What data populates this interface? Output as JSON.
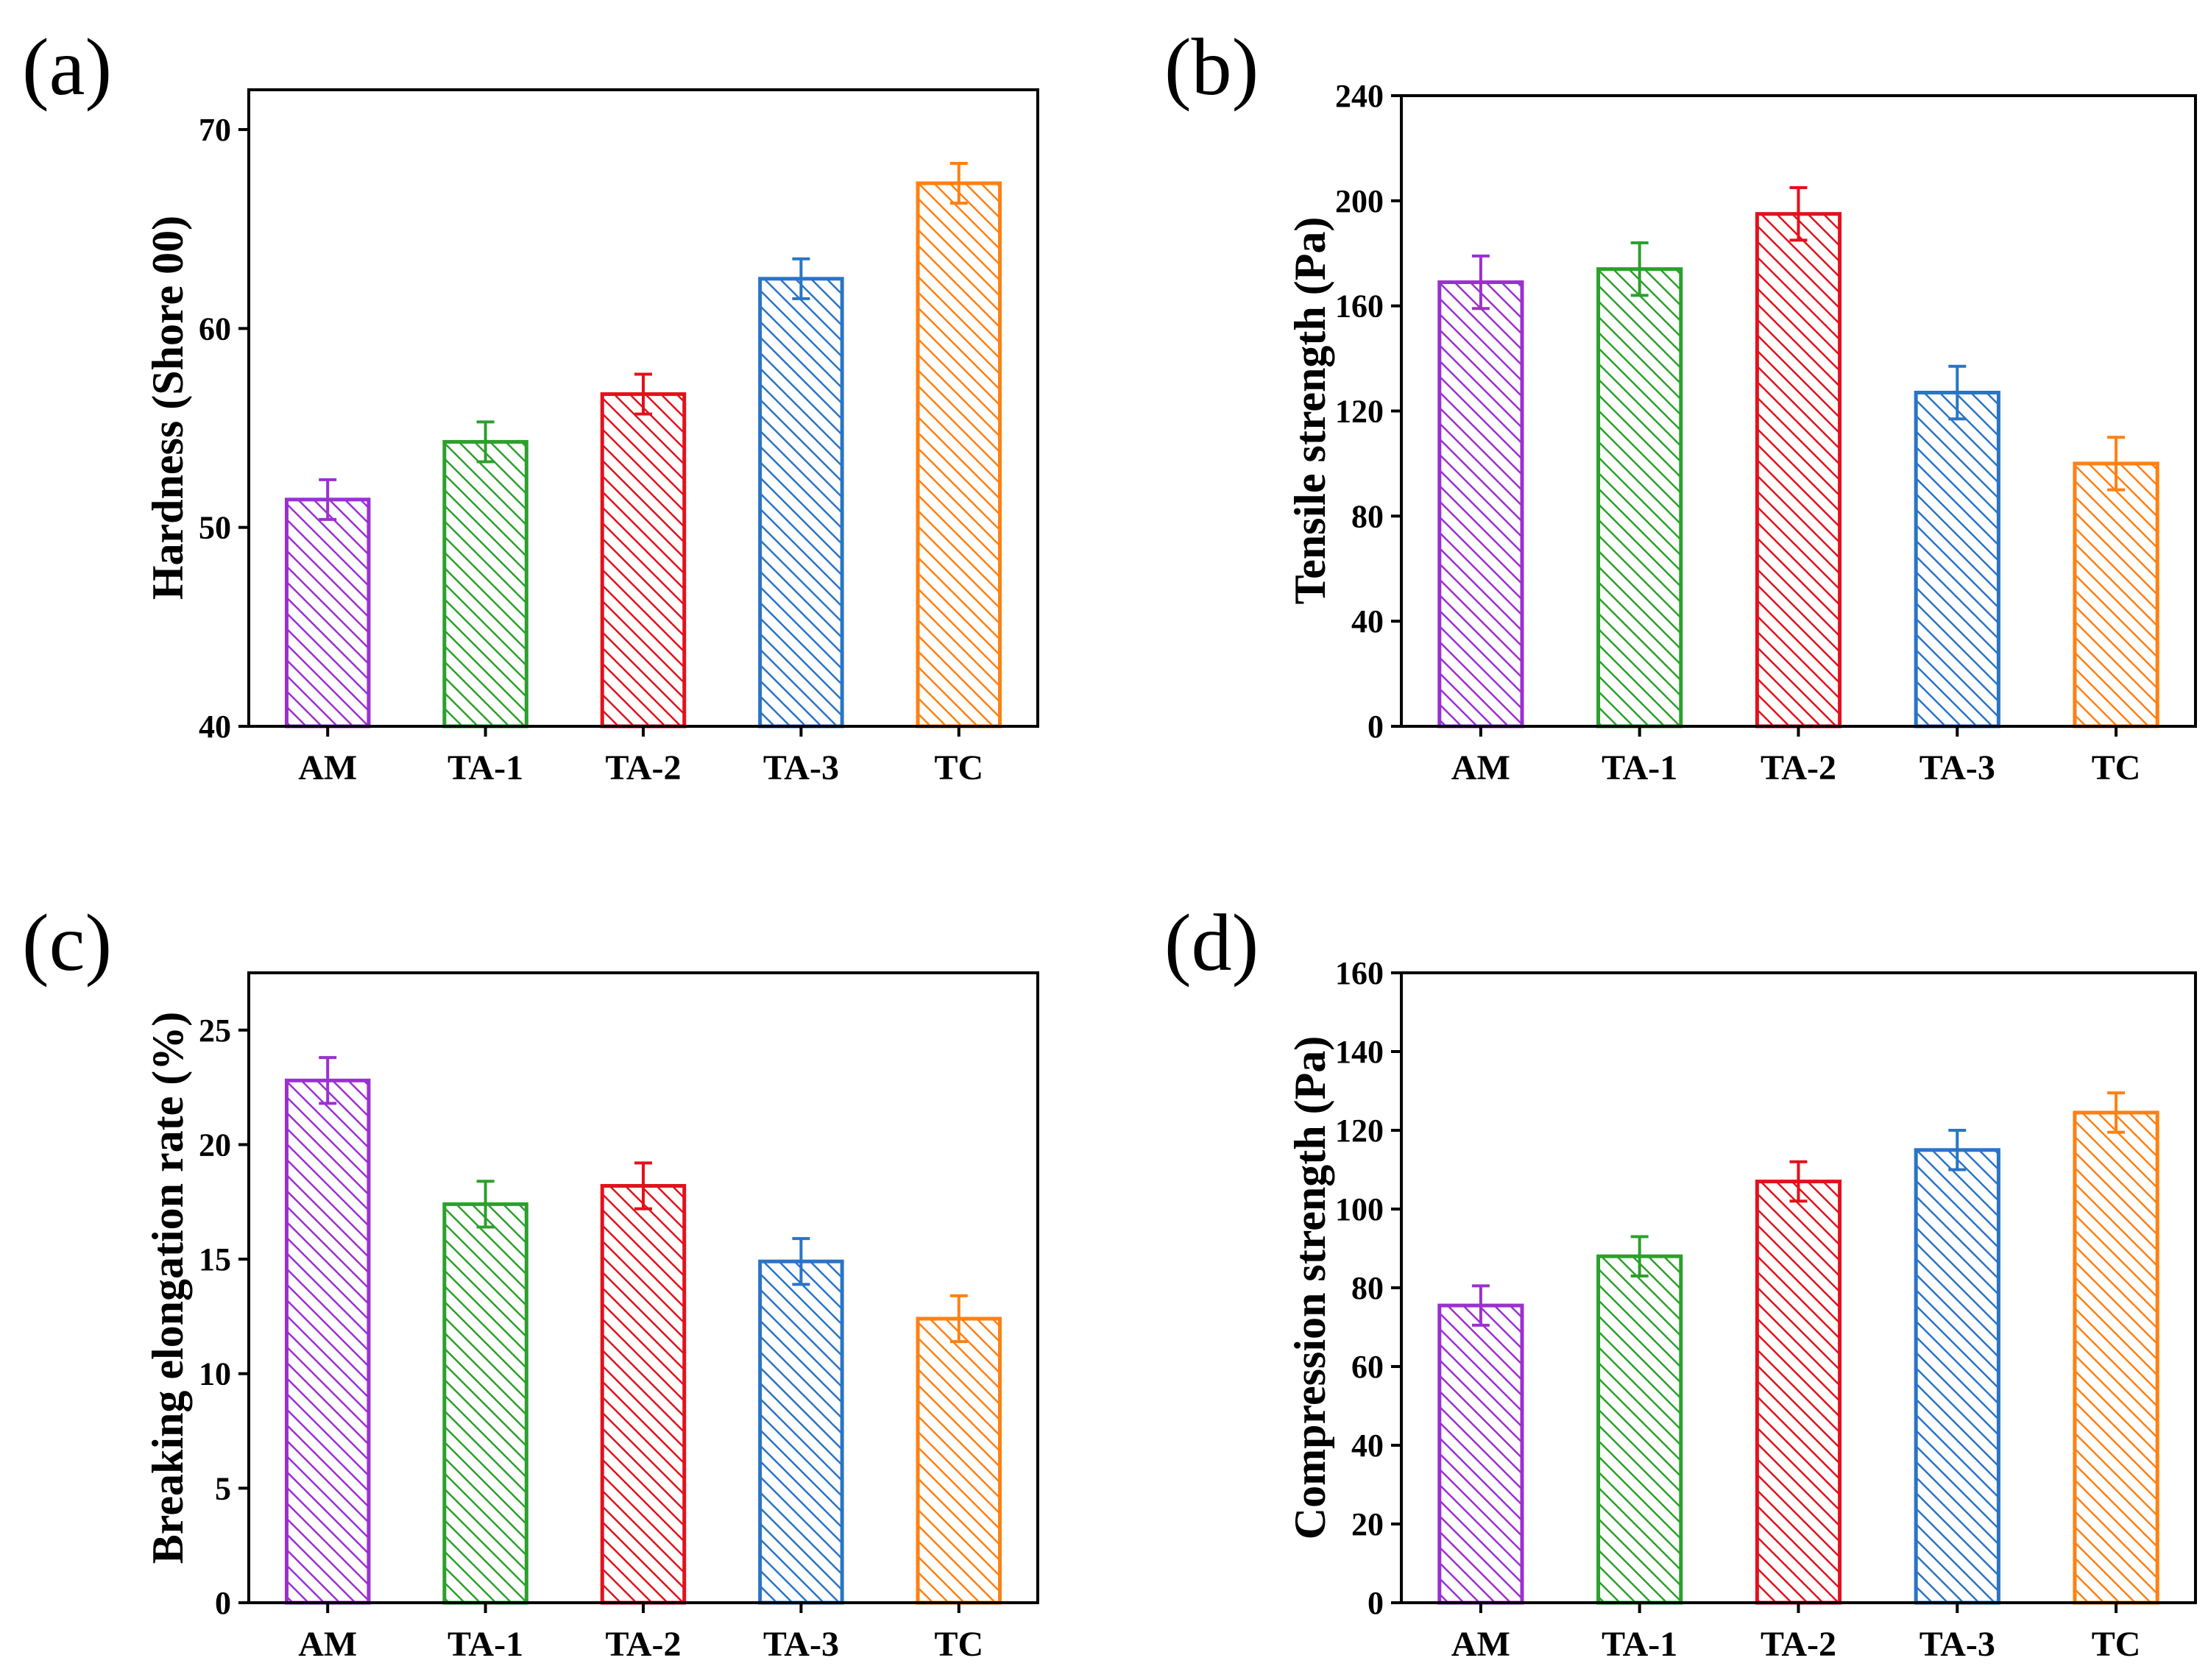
{
  "chart_data": [
    {
      "type": "bar",
      "panel": "(a)",
      "ylabel": "Hardness (Shore 00)",
      "xlabel": "",
      "categories": [
        "AM",
        "TA-1",
        "TA-2",
        "TA-3",
        "TC"
      ],
      "values": [
        51.4,
        54.3,
        56.7,
        62.5,
        67.3
      ],
      "errors": [
        1.0,
        1.0,
        1.0,
        1.0,
        1.0
      ],
      "ylim": [
        40,
        72
      ],
      "yticks": [
        40,
        50,
        60,
        70
      ],
      "colors": [
        "#9b30d0",
        "#2ca02c",
        "#e3111b",
        "#2a74c5",
        "#ff8012"
      ]
    },
    {
      "type": "bar",
      "panel": "(b)",
      "ylabel": "Tensile strength (Pa)",
      "xlabel": "",
      "categories": [
        "AM",
        "TA-1",
        "TA-2",
        "TA-3",
        "TC"
      ],
      "values": [
        169,
        174,
        195,
        127,
        100
      ],
      "errors": [
        10,
        10,
        10,
        10,
        10
      ],
      "ylim": [
        0,
        240
      ],
      "yticks": [
        0,
        40,
        80,
        120,
        160,
        200,
        240
      ],
      "colors": [
        "#9b30d0",
        "#2ca02c",
        "#e3111b",
        "#2a74c5",
        "#ff8012"
      ]
    },
    {
      "type": "bar",
      "panel": "(c)",
      "ylabel": "Breaking elongation rate (%)",
      "xlabel": "",
      "categories": [
        "AM",
        "TA-1",
        "TA-2",
        "TA-3",
        "TC"
      ],
      "values": [
        22.8,
        17.4,
        18.2,
        14.9,
        12.4
      ],
      "errors": [
        1.0,
        1.0,
        1.0,
        1.0,
        1.0
      ],
      "ylim": [
        0,
        27.5
      ],
      "yticks": [
        0,
        5,
        10,
        15,
        20,
        25
      ],
      "colors": [
        "#9b30d0",
        "#2ca02c",
        "#e3111b",
        "#2a74c5",
        "#ff8012"
      ]
    },
    {
      "type": "bar",
      "panel": "(d)",
      "ylabel": "Compression strength (Pa)",
      "xlabel": "",
      "categories": [
        "AM",
        "TA-1",
        "TA-2",
        "TA-3",
        "TC"
      ],
      "values": [
        75.5,
        88,
        107,
        115,
        124.5
      ],
      "errors": [
        5,
        5,
        5,
        5,
        5
      ],
      "ylim": [
        0,
        160
      ],
      "yticks": [
        0,
        20,
        40,
        60,
        80,
        100,
        120,
        140,
        160
      ],
      "colors": [
        "#9b30d0",
        "#2ca02c",
        "#e3111b",
        "#2a74c5",
        "#ff8012"
      ]
    }
  ]
}
